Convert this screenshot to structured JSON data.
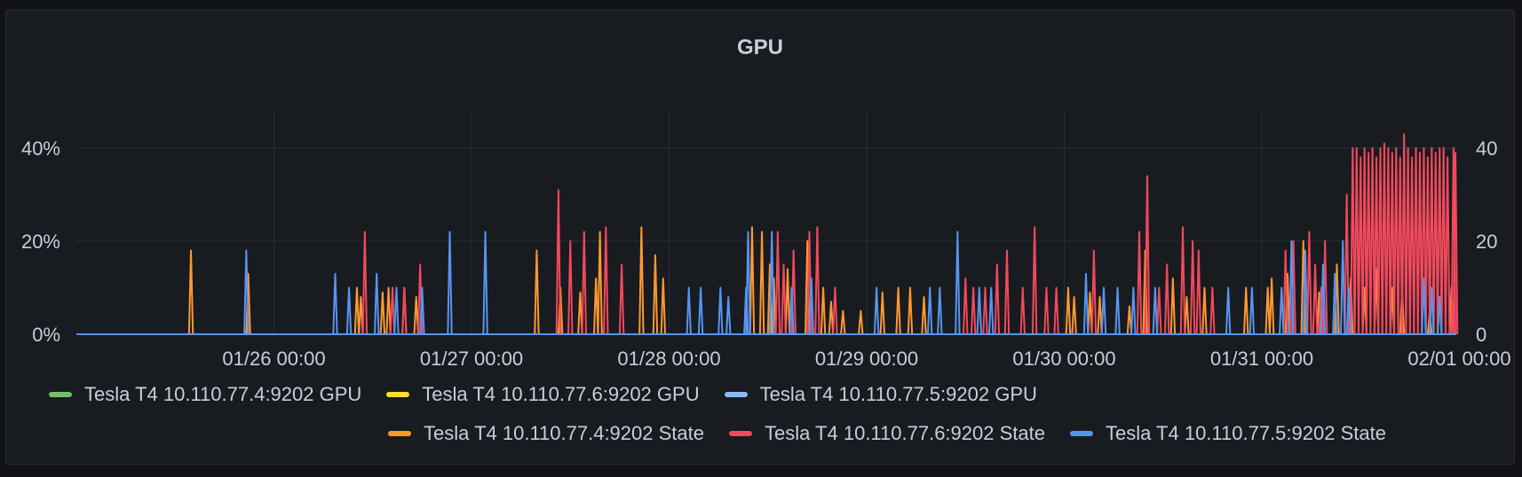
{
  "panel": {
    "title": "GPU"
  },
  "legend": {
    "row1": [
      {
        "label": "Tesla T4 10.110.77.4:9202 GPU",
        "color": "#73bf69"
      },
      {
        "label": "Tesla T4 10.110.77.6:9202 GPU",
        "color": "#fade2a"
      },
      {
        "label": "Tesla T4 10.110.77.5:9202 GPU",
        "color": "#8ab8ff"
      }
    ],
    "row2": [
      {
        "label": "Tesla T4 10.110.77.4:9202 State",
        "color": "#ff9830"
      },
      {
        "label": "Tesla T4 10.110.77.6:9202 State",
        "color": "#f2495c"
      },
      {
        "label": "Tesla T4 10.110.77.5:9202 State",
        "color": "#5794f2"
      }
    ]
  },
  "chart_data": {
    "type": "line",
    "title": "GPU",
    "x_domain": [
      "01/25 00:00",
      "02/01 00:00"
    ],
    "x_ticks": [
      "01/26 00:00",
      "01/27 00:00",
      "01/28 00:00",
      "01/29 00:00",
      "01/30 00:00",
      "01/31 00:00",
      "02/01 00:00"
    ],
    "y_left_ticks": [
      "0%",
      "20%",
      "40%"
    ],
    "y_right_ticks": [
      "0",
      "20",
      "40"
    ],
    "ylim": [
      0,
      48
    ],
    "grid": true,
    "legend_position": "bottom",
    "series": [
      {
        "name": "Tesla T4 10.110.77.4:9202 GPU",
        "color": "#73bf69",
        "axis": "left",
        "spikes": []
      },
      {
        "name": "Tesla T4 10.110.77.6:9202 GPU",
        "color": "#fade2a",
        "axis": "left",
        "spikes": []
      },
      {
        "name": "Tesla T4 10.110.77.5:9202 GPU",
        "color": "#8ab8ff",
        "axis": "left",
        "spikes": []
      },
      {
        "name": "Tesla T4 10.110.77.4:9202 State",
        "color": "#ff9830",
        "axis": "right",
        "spikes": [
          [
            0.58,
            18
          ],
          [
            0.87,
            13
          ],
          [
            1.42,
            10
          ],
          [
            1.44,
            8
          ],
          [
            1.55,
            9
          ],
          [
            1.58,
            10
          ],
          [
            1.66,
            10
          ],
          [
            1.72,
            8
          ],
          [
            2.33,
            18
          ],
          [
            2.45,
            10
          ],
          [
            2.55,
            9
          ],
          [
            2.63,
            12
          ],
          [
            2.65,
            22
          ],
          [
            2.86,
            23
          ],
          [
            2.93,
            17
          ],
          [
            2.97,
            12
          ],
          [
            3.42,
            23
          ],
          [
            3.47,
            22
          ],
          [
            3.51,
            15
          ],
          [
            3.53,
            12
          ],
          [
            3.6,
            14
          ],
          [
            3.7,
            20
          ],
          [
            3.78,
            10
          ],
          [
            3.82,
            7
          ],
          [
            3.88,
            5
          ],
          [
            3.97,
            5
          ],
          [
            4.08,
            9
          ],
          [
            4.16,
            10
          ],
          [
            4.22,
            10
          ],
          [
            4.29,
            8
          ],
          [
            5.02,
            10
          ],
          [
            5.05,
            8
          ],
          [
            5.13,
            9
          ],
          [
            5.18,
            8
          ],
          [
            5.33,
            6
          ],
          [
            5.41,
            18
          ],
          [
            5.55,
            12
          ],
          [
            5.62,
            8
          ],
          [
            5.71,
            10
          ],
          [
            5.92,
            10
          ],
          [
            6.03,
            10
          ],
          [
            6.05,
            12
          ],
          [
            6.13,
            13
          ],
          [
            6.21,
            20
          ],
          [
            6.29,
            9
          ],
          [
            6.38,
            15
          ],
          [
            6.45,
            12
          ],
          [
            6.52,
            10
          ],
          [
            6.58,
            14
          ],
          [
            6.66,
            10
          ],
          [
            6.71,
            10
          ],
          [
            6.85,
            5
          ],
          [
            6.9,
            8
          ],
          [
            6.96,
            10
          ]
        ]
      },
      {
        "name": "Tesla T4 10.110.77.6:9202 State",
        "color": "#f2495c",
        "axis": "right",
        "spikes": [
          [
            1.46,
            22
          ],
          [
            1.6,
            10
          ],
          [
            1.66,
            10
          ],
          [
            1.74,
            15
          ],
          [
            2.44,
            31
          ],
          [
            2.5,
            20
          ],
          [
            2.57,
            22
          ],
          [
            2.68,
            23
          ],
          [
            2.76,
            15
          ],
          [
            3.55,
            22
          ],
          [
            3.58,
            15
          ],
          [
            3.63,
            18
          ],
          [
            3.71,
            22
          ],
          [
            3.75,
            23
          ],
          [
            3.84,
            10
          ],
          [
            4.5,
            12
          ],
          [
            4.54,
            10
          ],
          [
            4.6,
            10
          ],
          [
            4.66,
            15
          ],
          [
            4.71,
            18
          ],
          [
            4.79,
            10
          ],
          [
            4.85,
            23
          ],
          [
            4.91,
            10
          ],
          [
            4.96,
            10
          ],
          [
            5.15,
            18
          ],
          [
            5.38,
            22
          ],
          [
            5.42,
            34
          ],
          [
            5.48,
            10
          ],
          [
            5.52,
            15
          ],
          [
            5.6,
            23
          ],
          [
            5.65,
            20
          ],
          [
            5.68,
            18
          ],
          [
            5.75,
            10
          ],
          [
            6.12,
            18
          ],
          [
            6.16,
            20
          ],
          [
            6.24,
            22
          ],
          [
            6.27,
            15
          ],
          [
            6.3,
            10
          ],
          [
            6.32,
            20
          ],
          [
            6.43,
            30
          ],
          [
            6.46,
            40
          ],
          [
            6.48,
            40
          ],
          [
            6.5,
            38
          ],
          [
            6.52,
            40
          ],
          [
            6.54,
            39
          ],
          [
            6.56,
            40
          ],
          [
            6.58,
            38
          ],
          [
            6.6,
            40
          ],
          [
            6.62,
            41
          ],
          [
            6.64,
            40
          ],
          [
            6.66,
            39
          ],
          [
            6.68,
            40
          ],
          [
            6.7,
            38
          ],
          [
            6.72,
            43
          ],
          [
            6.74,
            40
          ],
          [
            6.76,
            38
          ],
          [
            6.78,
            40
          ],
          [
            6.8,
            39
          ],
          [
            6.82,
            40
          ],
          [
            6.84,
            38
          ],
          [
            6.86,
            40
          ],
          [
            6.88,
            39
          ],
          [
            6.9,
            40
          ],
          [
            6.92,
            40
          ],
          [
            6.94,
            38
          ],
          [
            6.97,
            40
          ],
          [
            6.98,
            39
          ]
        ]
      },
      {
        "name": "Tesla T4 10.110.77.5:9202 State",
        "color": "#5794f2",
        "axis": "right",
        "spikes": [
          [
            0.86,
            18
          ],
          [
            1.31,
            13
          ],
          [
            1.38,
            10
          ],
          [
            1.52,
            13
          ],
          [
            1.62,
            10
          ],
          [
            1.75,
            10
          ],
          [
            1.89,
            22
          ],
          [
            2.07,
            22
          ],
          [
            3.1,
            10
          ],
          [
            3.16,
            10
          ],
          [
            3.26,
            10
          ],
          [
            3.3,
            8
          ],
          [
            3.39,
            10
          ],
          [
            3.52,
            22
          ],
          [
            3.4,
            22
          ],
          [
            3.62,
            10
          ],
          [
            3.72,
            12
          ],
          [
            4.05,
            10
          ],
          [
            4.32,
            10
          ],
          [
            4.37,
            10
          ],
          [
            4.46,
            22
          ],
          [
            4.57,
            10
          ],
          [
            4.63,
            10
          ],
          [
            5.11,
            13
          ],
          [
            5.2,
            10
          ],
          [
            5.27,
            10
          ],
          [
            5.35,
            10
          ],
          [
            5.46,
            10
          ],
          [
            5.83,
            10
          ],
          [
            5.95,
            10
          ],
          [
            6.1,
            10
          ],
          [
            6.15,
            20
          ],
          [
            6.22,
            18
          ],
          [
            6.31,
            15
          ],
          [
            6.37,
            13
          ],
          [
            6.41,
            20
          ],
          [
            6.44,
            10
          ],
          [
            6.82,
            12
          ],
          [
            6.86,
            10
          ],
          [
            6.9,
            8
          ]
        ]
      }
    ]
  }
}
